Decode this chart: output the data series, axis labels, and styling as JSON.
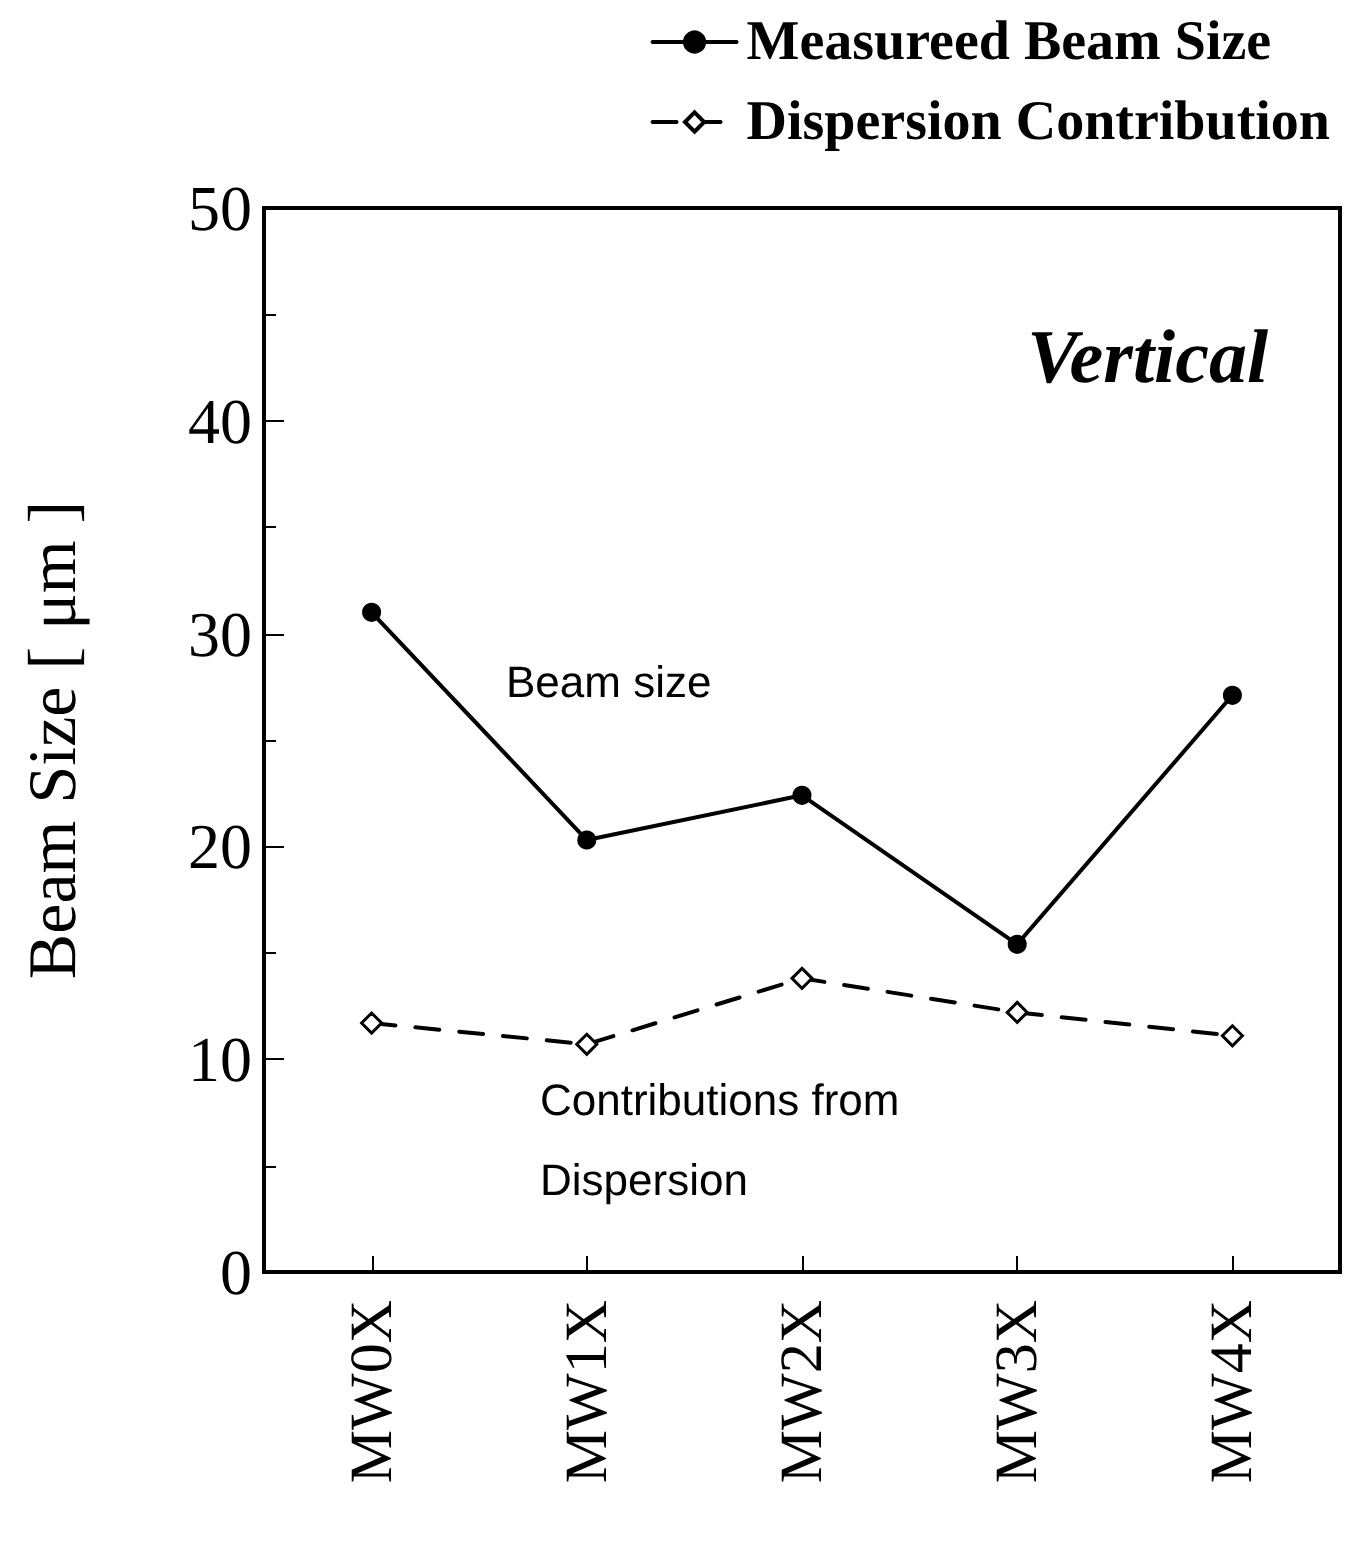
{
  "chart_data": {
    "type": "line",
    "ylabel": "Beam Size [ μm ]",
    "categories": [
      "MW0X",
      "MW1X",
      "MW2X",
      "MW3X",
      "MW4X"
    ],
    "series": [
      {
        "name": "Measureed Beam Size",
        "color": "#000000",
        "values": [
          31.0,
          20.3,
          22.4,
          15.4,
          27.1
        ],
        "marker": "circle",
        "line_style": "solid"
      },
      {
        "name": "Dispersion Contribution",
        "color": "#000000",
        "values": [
          11.7,
          10.7,
          13.8,
          12.2,
          11.1
        ],
        "marker": "diamond",
        "line_style": "dashed"
      }
    ],
    "ylim": [
      0,
      50
    ],
    "yticks": [
      0,
      10,
      20,
      30,
      40,
      50
    ],
    "grid": false,
    "legend": "top right",
    "annotations": [
      "Vertical",
      "Beam size",
      "Contributions from\nDispersion"
    ]
  }
}
